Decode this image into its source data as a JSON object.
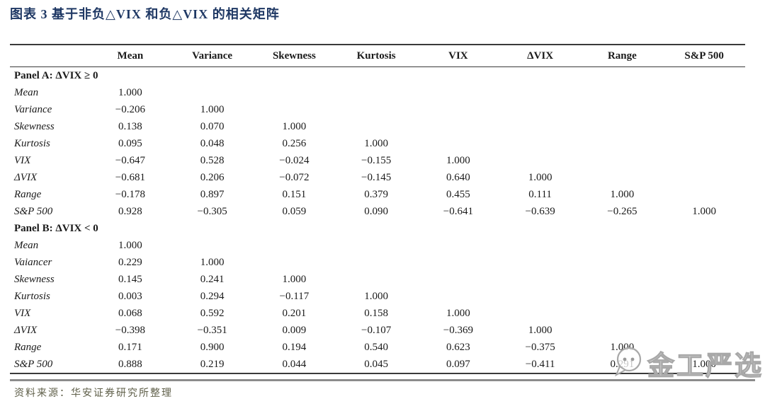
{
  "page": {
    "title": "图表 3  基于非负△VIX 和负△VIX 的相关矩阵",
    "source": "资料来源：华安证券研究所整理",
    "watermark": "金工严选",
    "colors": {
      "title": "#1f3864",
      "source": "#5f5f49",
      "rule": "#3a3a3a",
      "separator": "#8c8c8c",
      "watermark_stroke": "#a8a8a8"
    }
  },
  "chart_data": {
    "type": "table",
    "title": "基于非负ΔVIX 和负ΔVIX 的相关矩阵",
    "columns": [
      "Mean",
      "Variance",
      "Skewness",
      "Kurtosis",
      "VIX",
      "ΔVIX",
      "Range",
      "S&P 500"
    ],
    "panels": [
      {
        "label": "Panel A: ΔVIX ≥ 0",
        "rows": [
          {
            "label": "Mean",
            "values": [
              "1.000"
            ]
          },
          {
            "label": "Variance",
            "values": [
              "−0.206",
              "1.000"
            ]
          },
          {
            "label": "Skewness",
            "values": [
              "0.138",
              "0.070",
              "1.000"
            ]
          },
          {
            "label": "Kurtosis",
            "values": [
              "0.095",
              "0.048",
              "0.256",
              "1.000"
            ]
          },
          {
            "label": "VIX",
            "values": [
              "−0.647",
              "0.528",
              "−0.024",
              "−0.155",
              "1.000"
            ]
          },
          {
            "label": "ΔVIX",
            "values": [
              "−0.681",
              "0.206",
              "−0.072",
              "−0.145",
              "0.640",
              "1.000"
            ]
          },
          {
            "label": "Range",
            "values": [
              "−0.178",
              "0.897",
              "0.151",
              "0.379",
              "0.455",
              "0.111",
              "1.000"
            ]
          },
          {
            "label": "S&P 500",
            "values": [
              "0.928",
              "−0.305",
              "0.059",
              "0.090",
              "−0.641",
              "−0.639",
              "−0.265",
              "1.000"
            ]
          }
        ]
      },
      {
        "label": "Panel B: ΔVIX < 0",
        "rows": [
          {
            "label": "Mean",
            "values": [
              "1.000"
            ]
          },
          {
            "label": "Vaiancer",
            "values": [
              "0.229",
              "1.000"
            ]
          },
          {
            "label": "Skewness",
            "values": [
              "0.145",
              "0.241",
              "1.000"
            ]
          },
          {
            "label": "Kurtosis",
            "values": [
              "0.003",
              "0.294",
              "−0.117",
              "1.000"
            ]
          },
          {
            "label": "VIX",
            "values": [
              "0.068",
              "0.592",
              "0.201",
              "0.158",
              "1.000"
            ]
          },
          {
            "label": "ΔVIX",
            "values": [
              "−0.398",
              "−0.351",
              "0.009",
              "−0.107",
              "−0.369",
              "1.000"
            ]
          },
          {
            "label": "Range",
            "values": [
              "0.171",
              "0.900",
              "0.194",
              "0.540",
              "0.623",
              "−0.375",
              "1.000"
            ]
          },
          {
            "label": "S&P 500",
            "values": [
              "0.888",
              "0.219",
              "0.044",
              "0.045",
              "0.097",
              "−0.411",
              "0.291",
              "1.000"
            ]
          }
        ]
      }
    ]
  }
}
